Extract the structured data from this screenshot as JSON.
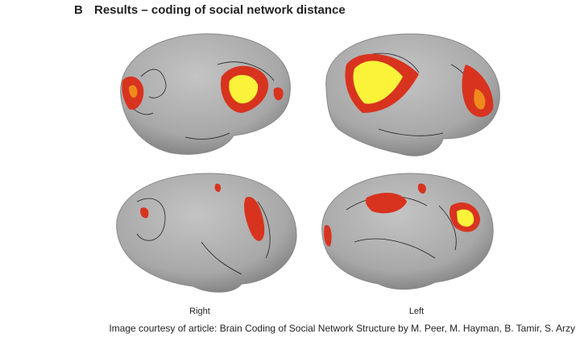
{
  "figure": {
    "panel": "B",
    "title": "Results – coding of social network distance",
    "labels": [
      "Right",
      "Left"
    ],
    "credit": "Image courtesy of article: Brain Coding of Social Network Structure by M. Peer, M. Hayman, B. Tamir, S. Arzy"
  }
}
